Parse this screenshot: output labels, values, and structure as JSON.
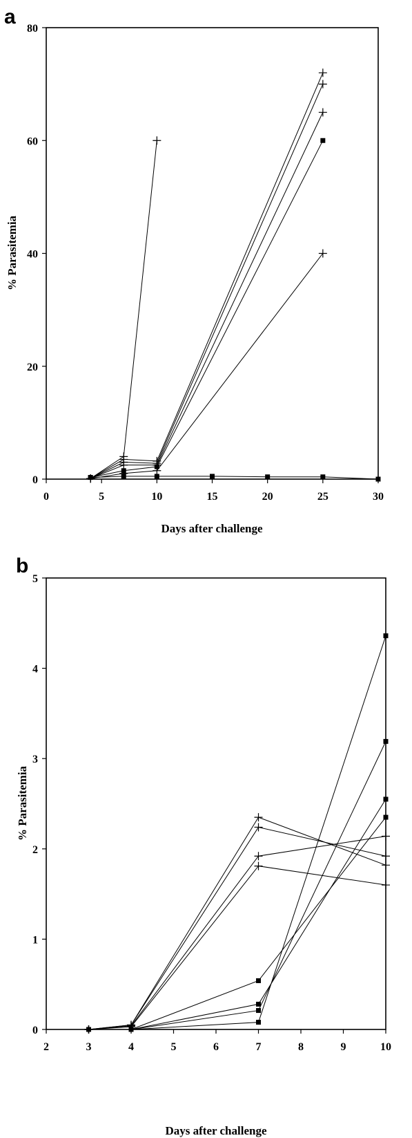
{
  "chart_data": [
    {
      "panel": "a",
      "type": "line",
      "xlabel": "Days after challenge",
      "ylabel": "% Parasitemia",
      "xlim": [
        0,
        30
      ],
      "ylim": [
        0,
        80
      ],
      "xticks": [
        0,
        5,
        10,
        15,
        20,
        25,
        30
      ],
      "yticks": [
        0,
        20,
        40,
        60,
        80
      ],
      "grid": false,
      "series": [
        {
          "marker": "plus",
          "points": [
            [
              4,
              0.1
            ],
            [
              7,
              4.0
            ],
            [
              10,
              60
            ]
          ]
        },
        {
          "marker": "plus",
          "points": [
            [
              4,
              0.1
            ],
            [
              7,
              3.5
            ],
            [
              10,
              3.2
            ],
            [
              25,
              72
            ]
          ]
        },
        {
          "marker": "plus",
          "points": [
            [
              4,
              0.1
            ],
            [
              7,
              3.0
            ],
            [
              10,
              2.8
            ],
            [
              25,
              70
            ]
          ]
        },
        {
          "marker": "plus",
          "points": [
            [
              4,
              0.1
            ],
            [
              7,
              2.5
            ],
            [
              10,
              2.5
            ],
            [
              25,
              65
            ]
          ]
        },
        {
          "marker": "square",
          "points": [
            [
              4,
              0.3
            ],
            [
              7,
              1.5
            ],
            [
              10,
              2.2
            ],
            [
              25,
              60
            ]
          ]
        },
        {
          "marker": "plus",
          "points": [
            [
              4,
              0.1
            ],
            [
              7,
              1.0
            ],
            [
              10,
              1.5
            ],
            [
              25,
              40
            ]
          ]
        },
        {
          "marker": "square",
          "points": [
            [
              4,
              0.3
            ],
            [
              7,
              0.5
            ],
            [
              10,
              0.5
            ],
            [
              15,
              0.5
            ],
            [
              20,
              0.4
            ],
            [
              25,
              0.4
            ],
            [
              30,
              0
            ]
          ]
        }
      ]
    },
    {
      "panel": "b",
      "type": "line",
      "xlabel": "Days after challenge",
      "ylabel": "% Parasitemia",
      "xlim": [
        2,
        10
      ],
      "ylim": [
        0,
        5
      ],
      "xticks": [
        2,
        3,
        4,
        5,
        6,
        7,
        8,
        9,
        10
      ],
      "yticks": [
        0,
        1,
        2,
        3,
        4,
        5
      ],
      "grid": false,
      "series": [
        {
          "marker": "plus",
          "points": [
            [
              3,
              0
            ],
            [
              4,
              0.05
            ],
            [
              7,
              2.35
            ],
            [
              10,
              1.82
            ]
          ]
        },
        {
          "marker": "plus",
          "points": [
            [
              3,
              0
            ],
            [
              4,
              0.05
            ],
            [
              7,
              2.24
            ],
            [
              10,
              1.92
            ]
          ]
        },
        {
          "marker": "plus",
          "points": [
            [
              3,
              0
            ],
            [
              4,
              0.04
            ],
            [
              7,
              1.92
            ],
            [
              10,
              2.14
            ]
          ]
        },
        {
          "marker": "plus",
          "points": [
            [
              3,
              0
            ],
            [
              4,
              0.03
            ],
            [
              7,
              1.81
            ],
            [
              10,
              1.6
            ]
          ]
        },
        {
          "marker": "square",
          "points": [
            [
              3,
              0
            ],
            [
              4,
              0
            ],
            [
              7,
              0.08
            ],
            [
              10,
              4.36
            ]
          ]
        },
        {
          "marker": "square",
          "points": [
            [
              3,
              0
            ],
            [
              4,
              0
            ],
            [
              7,
              0.21
            ],
            [
              10,
              3.19
            ]
          ]
        },
        {
          "marker": "square",
          "points": [
            [
              3,
              0
            ],
            [
              4,
              0
            ],
            [
              7,
              0.28
            ],
            [
              10,
              2.55
            ]
          ]
        },
        {
          "marker": "square",
          "points": [
            [
              3,
              0
            ],
            [
              4,
              0
            ],
            [
              7,
              0.54
            ],
            [
              10,
              2.35
            ]
          ]
        }
      ]
    }
  ]
}
